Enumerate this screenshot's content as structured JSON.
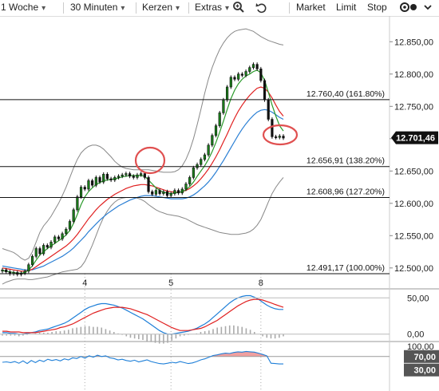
{
  "toolbar": {
    "period": "1 Woche",
    "interval": "30 Minuten",
    "chart_style": "Kerzen",
    "extras": "Extras",
    "market": "Market",
    "limit": "Limit",
    "stop": "Stop",
    "icons": [
      "zoom-icon",
      "undo-icon",
      "settings-toggle-icon",
      "chevron-down-icon"
    ]
  },
  "colors": {
    "candle": "#1a7f1a",
    "sma_fast": "#2a9a2a",
    "sma_mid": "#e02020",
    "sma_slow": "#2a7fd4",
    "bollinger": "#888888",
    "macd_line": "#1e7fd8",
    "signal_line": "#e02020",
    "rsi": "#1e7fd8",
    "highlight": "#e05050",
    "last_price_bg": "#111111"
  },
  "chart_data": {
    "type": "line",
    "title": "",
    "xlabel": "",
    "ylabel": "",
    "x_ticks": [
      "4",
      "5",
      "8"
    ],
    "price_axis": {
      "ylim": [
        12480,
        12880
      ],
      "ticks": [
        "12.850,00",
        "12.800,00",
        "12.750,00",
        "12.700,00",
        "12.650,00",
        "12.600,00",
        "12.550,00",
        "12.500,00"
      ],
      "tick_values": [
        12850,
        12800,
        12750,
        12700,
        12650,
        12600,
        12550,
        12500
      ]
    },
    "last_price": {
      "value": 12701.46,
      "label": "12.701,46"
    },
    "fibonacci": [
      {
        "value": 12760.4,
        "label": "12.760,40 (161.80%)"
      },
      {
        "value": 12656.91,
        "label": "12.656,91 (138.20%)"
      },
      {
        "value": 12608.96,
        "label": "12.608,96 (127.20%)"
      },
      {
        "value": 12491.17,
        "label": "12.491,17 (100.00%)"
      }
    ],
    "close_series": [
      12497,
      12494,
      12491,
      12493,
      12490,
      12492,
      12495,
      12505,
      12518,
      12530,
      12522,
      12535,
      12532,
      12540,
      12548,
      12545,
      12553,
      12560,
      12572,
      12590,
      12610,
      12625,
      12622,
      12635,
      12628,
      12640,
      12633,
      12645,
      12638,
      12636,
      12640,
      12642,
      12644,
      12646,
      12642,
      12640,
      12644,
      12646,
      12640,
      12618,
      12614,
      12620,
      12615,
      12618,
      12612,
      12615,
      12620,
      12616,
      12622,
      12630,
      12640,
      12655,
      12660,
      12668,
      12675,
      12690,
      12705,
      12720,
      12740,
      12760,
      12780,
      12795,
      12792,
      12800,
      12798,
      12804,
      12810,
      12815,
      12808,
      12790,
      12760,
      12730,
      12703,
      12702,
      12704,
      12701
    ],
    "sma_fast": [
      12496,
      12495,
      12494,
      12493,
      12492,
      12492,
      12493,
      12497,
      12503,
      12512,
      12520,
      12525,
      12530,
      12534,
      12538,
      12542,
      12546,
      12551,
      12558,
      12569,
      12583,
      12598,
      12610,
      12618,
      12624,
      12629,
      12632,
      12635,
      12636,
      12637,
      12638,
      12639,
      12641,
      12642,
      12643,
      12643,
      12643,
      12643,
      12642,
      12636,
      12630,
      12624,
      12620,
      12617,
      12616,
      12615,
      12616,
      12617,
      12618,
      12621,
      12626,
      12633,
      12642,
      12650,
      12658,
      12668,
      12680,
      12694,
      12710,
      12727,
      12745,
      12762,
      12775,
      12785,
      12792,
      12797,
      12800,
      12804,
      12806,
      12802,
      12790,
      12772,
      12752,
      12735,
      12720,
      12712
    ],
    "sma_mid": [
      12500,
      12499,
      12498,
      12497,
      12496,
      12495,
      12495,
      12496,
      12498,
      12502,
      12506,
      12510,
      12514,
      12518,
      12522,
      12526,
      12530,
      12534,
      12539,
      12545,
      12552,
      12560,
      12568,
      12576,
      12583,
      12590,
      12596,
      12601,
      12606,
      12610,
      12614,
      12617,
      12620,
      12623,
      12625,
      12627,
      12628,
      12629,
      12629,
      12628,
      12627,
      12625,
      12623,
      12621,
      12619,
      12618,
      12617,
      12617,
      12618,
      12620,
      12623,
      12627,
      12632,
      12638,
      12645,
      12653,
      12662,
      12672,
      12683,
      12695,
      12707,
      12720,
      12732,
      12743,
      12752,
      12760,
      12767,
      12773,
      12778,
      12780,
      12778,
      12772,
      12763,
      12752,
      12742,
      12735
    ],
    "sma_slow": [
      12503,
      12502,
      12501,
      12500,
      12499,
      12498,
      12497,
      12497,
      12497,
      12499,
      12501,
      12503,
      12506,
      12509,
      12512,
      12515,
      12518,
      12522,
      12526,
      12531,
      12537,
      12543,
      12549,
      12556,
      12562,
      12568,
      12574,
      12579,
      12584,
      12588,
      12592,
      12596,
      12599,
      12602,
      12605,
      12607,
      12609,
      12611,
      12612,
      12612,
      12612,
      12611,
      12610,
      12609,
      12608,
      12607,
      12607,
      12607,
      12607,
      12608,
      12610,
      12613,
      12617,
      12622,
      12627,
      12633,
      12640,
      12648,
      12657,
      12666,
      12676,
      12686,
      12696,
      12706,
      12715,
      12723,
      12730,
      12736,
      12741,
      12744,
      12745,
      12744,
      12741,
      12737,
      12733,
      12730
    ],
    "bollinger_upper": [
      12530,
      12528,
      12526,
      12524,
      12520,
      12515,
      12512,
      12515,
      12525,
      12540,
      12555,
      12565,
      12572,
      12580,
      12590,
      12600,
      12612,
      12625,
      12640,
      12655,
      12668,
      12678,
      12684,
      12688,
      12690,
      12690,
      12688,
      12684,
      12678,
      12672,
      12665,
      12660,
      12656,
      12654,
      12653,
      12652,
      12652,
      12652,
      12652,
      12652,
      12651,
      12650,
      12649,
      12648,
      12648,
      12648,
      12649,
      12652,
      12658,
      12668,
      12682,
      12700,
      12722,
      12745,
      12770,
      12792,
      12810,
      12825,
      12838,
      12848,
      12856,
      12862,
      12866,
      12868,
      12869,
      12870,
      12868,
      12866,
      12862,
      12858,
      12855,
      12852,
      12850,
      12848,
      12846,
      12845
    ],
    "bollinger_lower": [
      12475,
      12478,
      12480,
      12482,
      12483,
      12483,
      12483,
      12482,
      12482,
      12483,
      12484,
      12485,
      12486,
      12488,
      12490,
      12492,
      12494,
      12495,
      12496,
      12497,
      12498,
      12502,
      12510,
      12522,
      12535,
      12550,
      12565,
      12578,
      12588,
      12596,
      12602,
      12606,
      12608,
      12609,
      12609,
      12609,
      12608,
      12606,
      12603,
      12598,
      12594,
      12590,
      12587,
      12585,
      12583,
      12582,
      12581,
      12580,
      12578,
      12576,
      12573,
      12570,
      12567,
      12565,
      12563,
      12561,
      12559,
      12557,
      12555,
      12554,
      12553,
      12552,
      12552,
      12552,
      12553,
      12554,
      12556,
      12560,
      12566,
      12575,
      12588,
      12602,
      12615,
      12625,
      12633,
      12640
    ],
    "macd": {
      "ylim": [
        -8,
        58
      ],
      "ticks": [
        "50,00",
        "0,00"
      ],
      "tick_values": [
        50,
        0
      ],
      "macd": [
        2,
        2,
        1,
        1,
        0,
        0,
        1,
        2,
        3,
        5,
        6,
        7,
        9,
        11,
        13,
        15,
        18,
        22,
        26,
        30,
        34,
        37,
        39,
        41,
        42,
        42,
        41,
        40,
        38,
        36,
        33,
        30,
        27,
        24,
        21,
        17,
        13,
        9,
        5,
        2,
        0,
        0,
        1,
        2,
        3,
        4,
        6,
        8,
        11,
        14,
        18,
        23,
        28,
        33,
        38,
        43,
        47,
        50,
        52,
        53,
        53,
        51,
        48,
        44,
        40,
        37,
        35,
        34,
        34
      ],
      "signal": [
        4,
        4,
        3,
        3,
        3,
        2,
        2,
        2,
        2,
        3,
        4,
        5,
        6,
        7,
        9,
        10,
        12,
        14,
        17,
        20,
        23,
        26,
        29,
        31,
        33,
        35,
        36,
        37,
        37,
        37,
        36,
        35,
        33,
        31,
        29,
        27,
        24,
        21,
        18,
        15,
        12,
        9,
        7,
        5,
        5,
        5,
        6,
        7,
        8,
        10,
        13,
        16,
        19,
        23,
        27,
        31,
        35,
        39,
        42,
        45,
        47,
        48,
        48,
        47,
        45,
        43,
        41,
        39,
        37
      ]
    },
    "rsi": {
      "ylim": [
        15,
        105
      ],
      "ticks": [
        "100,00",
        "70,00",
        "30,00"
      ],
      "tick_values": [
        100,
        70,
        30
      ],
      "values": [
        53,
        54,
        52,
        55,
        50,
        57,
        49,
        58,
        52,
        59,
        55,
        62,
        58,
        61,
        57,
        63,
        60,
        66,
        64,
        70,
        65,
        72,
        68,
        74,
        70,
        72,
        66,
        64,
        60,
        62,
        58,
        56,
        59,
        54,
        57,
        60,
        55,
        52,
        49,
        48,
        50,
        53,
        51,
        55,
        52,
        49,
        51,
        55,
        60,
        63,
        68,
        73,
        75,
        78,
        80,
        79,
        82,
        84,
        83,
        85,
        84,
        83,
        80,
        76,
        72,
        50,
        49,
        48,
        48
      ]
    }
  }
}
